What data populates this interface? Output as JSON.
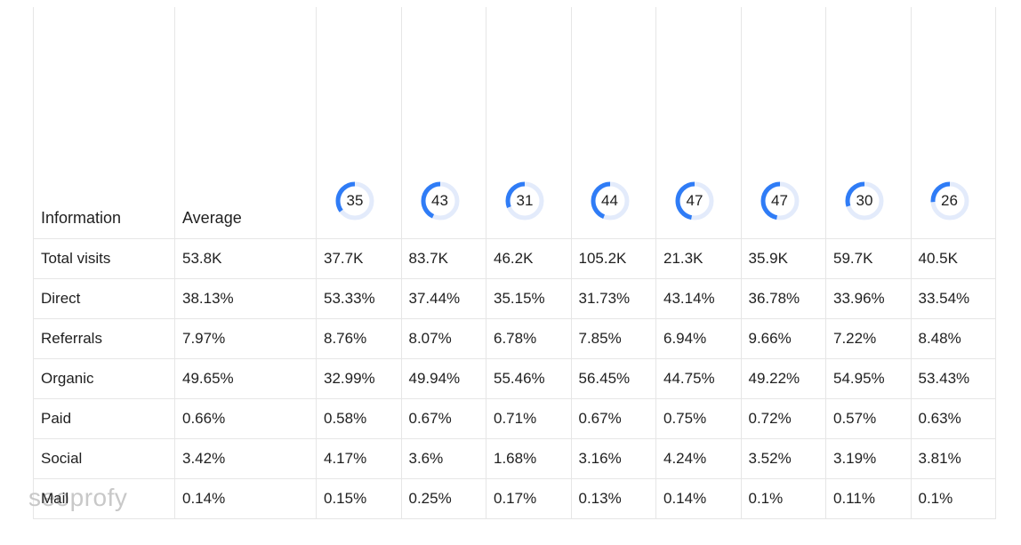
{
  "header": {
    "info_label": "Information",
    "avg_label": "Average",
    "scores": [
      35,
      43,
      31,
      44,
      47,
      47,
      30,
      26
    ]
  },
  "rows": [
    {
      "label": "Total visits",
      "avg": "53.8K",
      "values": [
        "37.7K",
        "83.7K",
        "46.2K",
        "105.2K",
        "21.3K",
        "35.9K",
        "59.7K",
        "40.5K"
      ]
    },
    {
      "label": "Direct",
      "avg": "38.13%",
      "values": [
        "53.33%",
        "37.44%",
        "35.15%",
        "31.73%",
        "43.14%",
        "36.78%",
        "33.96%",
        "33.54%"
      ]
    },
    {
      "label": "Referrals",
      "avg": "7.97%",
      "values": [
        "8.76%",
        "8.07%",
        "6.78%",
        "7.85%",
        "6.94%",
        "9.66%",
        "7.22%",
        "8.48%"
      ]
    },
    {
      "label": "Organic",
      "avg": "49.65%",
      "values": [
        "32.99%",
        "49.94%",
        "55.46%",
        "56.45%",
        "44.75%",
        "49.22%",
        "54.95%",
        "53.43%"
      ]
    },
    {
      "label": "Paid",
      "avg": "0.66%",
      "values": [
        "0.58%",
        "0.67%",
        "0.71%",
        "0.67%",
        "0.75%",
        "0.72%",
        "0.57%",
        "0.63%"
      ]
    },
    {
      "label": "Social",
      "avg": "3.42%",
      "values": [
        "4.17%",
        "3.6%",
        "1.68%",
        "3.16%",
        "4.24%",
        "3.52%",
        "3.19%",
        "3.81%"
      ]
    },
    {
      "label": "Mail",
      "avg": "0.14%",
      "values": [
        "0.15%",
        "0.25%",
        "0.17%",
        "0.13%",
        "0.14%",
        "0.1%",
        "0.11%",
        "0.1%"
      ]
    }
  ],
  "watermark": "seoprofy",
  "colors": {
    "gauge_fill": "#2f7cf6",
    "gauge_track": "#e3ebfb",
    "border": "#e6e6e6"
  }
}
